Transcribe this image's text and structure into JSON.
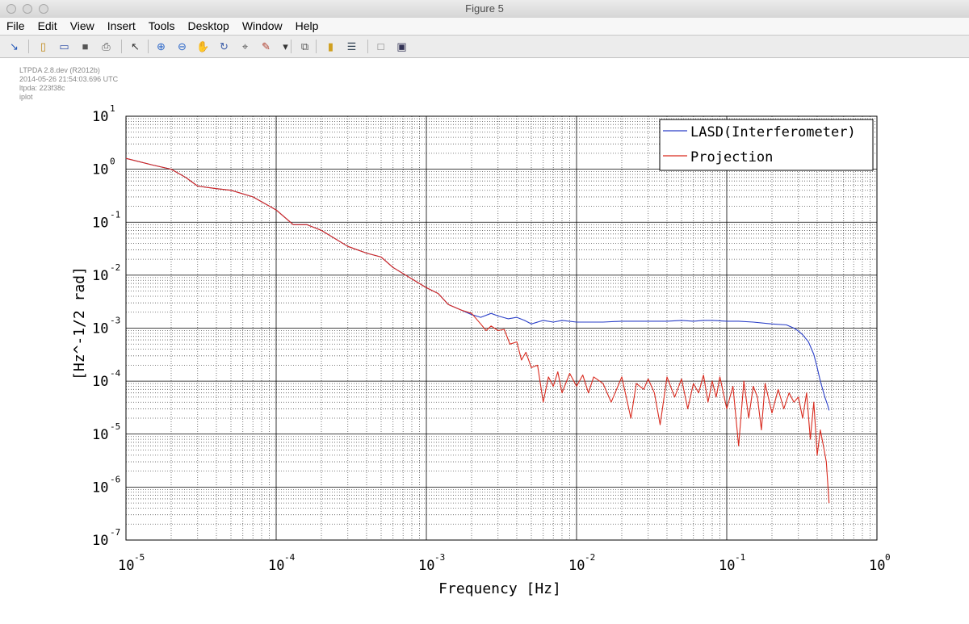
{
  "window": {
    "title": "Figure 5"
  },
  "menu": [
    "File",
    "Edit",
    "View",
    "Insert",
    "Tools",
    "Desktop",
    "Window",
    "Help"
  ],
  "toolbar": [
    {
      "name": "arrow-icon",
      "glyph": "↘"
    },
    {
      "name": "new-figure-icon",
      "glyph": "▯"
    },
    {
      "name": "open-file-icon",
      "glyph": "▭"
    },
    {
      "name": "save-icon",
      "glyph": "■"
    },
    {
      "name": "print-icon",
      "glyph": "⎙"
    },
    {
      "name": "pointer-icon",
      "glyph": "↖"
    },
    {
      "name": "zoom-in-icon",
      "glyph": "⊕"
    },
    {
      "name": "zoom-out-icon",
      "glyph": "⊖"
    },
    {
      "name": "pan-hand-icon",
      "glyph": "✋"
    },
    {
      "name": "rotate-3d-icon",
      "glyph": "↻"
    },
    {
      "name": "data-cursor-icon",
      "glyph": "⌖"
    },
    {
      "name": "brush-icon",
      "glyph": "✎"
    },
    {
      "name": "dropdown-arrow-icon",
      "glyph": "▾"
    },
    {
      "name": "link-plot-icon",
      "glyph": "⧉"
    },
    {
      "name": "colorbar-icon",
      "glyph": "▮"
    },
    {
      "name": "legend-icon",
      "glyph": "☰"
    },
    {
      "name": "hide-tools-icon",
      "glyph": "□"
    },
    {
      "name": "show-tools-icon",
      "glyph": "▣"
    }
  ],
  "info_lines": [
    "LTPDA 2.8.dev (R2012b)",
    "2014-05-26 21:54:03.696 UTC",
    "ltpda: 223f38c",
    "iplot"
  ],
  "colors": {
    "series_blue": "#2a3fc8",
    "series_red": "#d92a1e",
    "grid_major": "#000000",
    "grid_minor": "#555555"
  },
  "chart_data": {
    "type": "line",
    "xscale": "log",
    "yscale": "log",
    "xlim": [
      1e-05,
      1
    ],
    "ylim": [
      1e-07,
      10
    ],
    "xlabel": "Frequency   [Hz]",
    "ylabel": "[Hz^-1/2  rad]",
    "grid": "major and minor",
    "legend_position": "top-right",
    "x_ticks": [
      {
        "base": "10",
        "exp": "-5"
      },
      {
        "base": "10",
        "exp": "-4"
      },
      {
        "base": "10",
        "exp": "-3"
      },
      {
        "base": "10",
        "exp": "-2"
      },
      {
        "base": "10",
        "exp": "-1"
      },
      {
        "base": "10",
        "exp": "0"
      }
    ],
    "y_ticks": [
      {
        "base": "10",
        "exp": "1"
      },
      {
        "base": "10",
        "exp": "0"
      },
      {
        "base": "10",
        "exp": "-1"
      },
      {
        "base": "10",
        "exp": "-2"
      },
      {
        "base": "10",
        "exp": "-3"
      },
      {
        "base": "10",
        "exp": "-4"
      },
      {
        "base": "10",
        "exp": "-5"
      },
      {
        "base": "10",
        "exp": "-6"
      },
      {
        "base": "10",
        "exp": "-7"
      }
    ],
    "series": [
      {
        "name": "LASD(Interferometer)",
        "color": "#2a3fc8",
        "x": [
          1e-05,
          1.5e-05,
          2e-05,
          2.5e-05,
          3e-05,
          4e-05,
          5e-05,
          7e-05,
          0.0001,
          0.00013,
          0.00016,
          0.0002,
          0.0003,
          0.0004,
          0.0005,
          0.0006,
          0.0008,
          0.001,
          0.0012,
          0.0014,
          0.0017,
          0.002,
          0.0023,
          0.0027,
          0.003,
          0.0035,
          0.004,
          0.0045,
          0.005,
          0.006,
          0.007,
          0.008,
          0.01,
          0.012,
          0.015,
          0.02,
          0.025,
          0.03,
          0.04,
          0.05,
          0.06,
          0.07,
          0.08,
          0.1,
          0.12,
          0.15,
          0.2,
          0.25,
          0.28,
          0.3,
          0.32,
          0.35,
          0.38,
          0.4,
          0.42,
          0.45,
          0.47,
          0.48
        ],
        "y": [
          1.6,
          1.2,
          1.0,
          0.7,
          0.48,
          0.43,
          0.4,
          0.3,
          0.17,
          0.09,
          0.09,
          0.07,
          0.035,
          0.026,
          0.022,
          0.014,
          0.0085,
          0.0058,
          0.0045,
          0.0028,
          0.0022,
          0.0018,
          0.0016,
          0.0019,
          0.0017,
          0.0015,
          0.0016,
          0.0014,
          0.0012,
          0.0014,
          0.0013,
          0.0014,
          0.0013,
          0.0013,
          0.0013,
          0.00135,
          0.00135,
          0.00135,
          0.00135,
          0.0014,
          0.00135,
          0.0014,
          0.0014,
          0.00135,
          0.00135,
          0.0013,
          0.0012,
          0.00115,
          0.001,
          0.00088,
          0.00075,
          0.00055,
          0.00032,
          0.00018,
          0.0001,
          5e-05,
          3.5e-05,
          2.8e-05
        ]
      },
      {
        "name": "Projection",
        "color": "#d92a1e",
        "x": [
          1e-05,
          1.5e-05,
          2e-05,
          2.5e-05,
          3e-05,
          4e-05,
          5e-05,
          7e-05,
          0.0001,
          0.00013,
          0.00016,
          0.0002,
          0.0003,
          0.0004,
          0.0005,
          0.0006,
          0.0008,
          0.001,
          0.0012,
          0.0014,
          0.0017,
          0.002,
          0.0023,
          0.0025,
          0.0027,
          0.003,
          0.0033,
          0.0036,
          0.004,
          0.0043,
          0.0046,
          0.005,
          0.0055,
          0.006,
          0.0065,
          0.007,
          0.0075,
          0.008,
          0.009,
          0.01,
          0.011,
          0.012,
          0.013,
          0.015,
          0.017,
          0.02,
          0.023,
          0.025,
          0.028,
          0.03,
          0.033,
          0.036,
          0.04,
          0.045,
          0.05,
          0.055,
          0.06,
          0.065,
          0.07,
          0.075,
          0.08,
          0.085,
          0.09,
          0.1,
          0.11,
          0.12,
          0.13,
          0.14,
          0.15,
          0.16,
          0.17,
          0.18,
          0.2,
          0.22,
          0.24,
          0.26,
          0.28,
          0.3,
          0.32,
          0.34,
          0.36,
          0.38,
          0.4,
          0.42,
          0.44,
          0.46,
          0.48
        ],
        "y": [
          1.6,
          1.2,
          1.0,
          0.7,
          0.48,
          0.43,
          0.4,
          0.3,
          0.17,
          0.09,
          0.09,
          0.07,
          0.035,
          0.026,
          0.022,
          0.014,
          0.0085,
          0.0058,
          0.0045,
          0.0028,
          0.0022,
          0.0019,
          0.0012,
          0.0009,
          0.0011,
          0.0009,
          0.00095,
          0.0005,
          0.00055,
          0.00025,
          0.00035,
          0.00018,
          0.0002,
          4e-05,
          0.00012,
          8e-05,
          0.00015,
          6e-05,
          0.00014,
          8e-05,
          0.00013,
          6e-05,
          0.00012,
          9e-05,
          4e-05,
          0.00012,
          2e-05,
          9e-05,
          7e-05,
          0.00011,
          6e-05,
          1.5e-05,
          0.00012,
          5e-05,
          0.00011,
          3e-05,
          9e-05,
          6e-05,
          0.00013,
          4e-05,
          0.0001,
          5e-05,
          0.00012,
          3e-05,
          8e-05,
          6e-06,
          0.0001,
          2e-05,
          8e-05,
          5e-05,
          1.2e-05,
          9e-05,
          2.5e-05,
          7e-05,
          3e-05,
          6e-05,
          4e-05,
          5e-05,
          2e-05,
          6e-05,
          8e-06,
          4e-05,
          4e-06,
          1.2e-05,
          6e-06,
          3e-06,
          5e-07
        ]
      }
    ]
  }
}
